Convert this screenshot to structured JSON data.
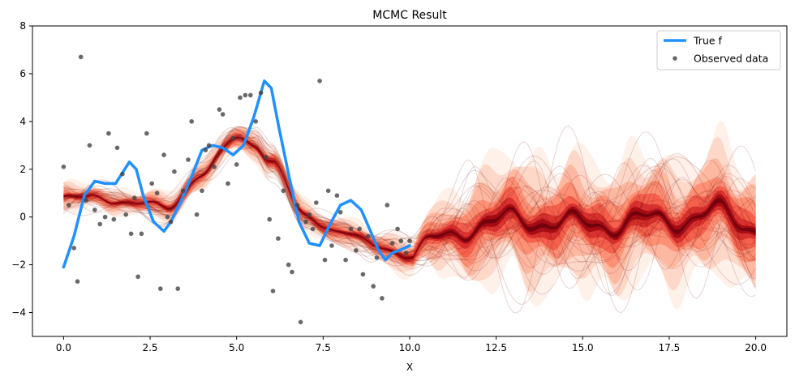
{
  "chart_data": {
    "type": "line",
    "title": "MCMC Result",
    "xlabel": "X",
    "ylabel": "",
    "xlim": [
      -0.9,
      20.9
    ],
    "ylim": [
      -5,
      8
    ],
    "xticks": [
      0.0,
      2.5,
      5.0,
      7.5,
      10.0,
      12.5,
      15.0,
      17.5,
      20.0
    ],
    "xtick_labels": [
      "0.0",
      "2.5",
      "5.0",
      "7.5",
      "10.0",
      "12.5",
      "15.0",
      "17.5",
      "20.0"
    ],
    "yticks": [
      -4,
      -2,
      0,
      2,
      4,
      6,
      8
    ],
    "ytick_labels": [
      "−4",
      "−2",
      "0",
      "2",
      "4",
      "6",
      "8"
    ],
    "grid": false,
    "legend_position": "top-right",
    "series": [
      {
        "name": "True f",
        "kind": "line",
        "color": "#1e90ff",
        "x": [
          0.0,
          0.3,
          0.6,
          0.9,
          1.2,
          1.5,
          1.9,
          2.1,
          2.3,
          2.6,
          2.9,
          3.1,
          3.4,
          3.7,
          4.0,
          4.3,
          4.6,
          4.9,
          5.2,
          5.5,
          5.8,
          6.0,
          6.2,
          6.5,
          6.8,
          7.1,
          7.4,
          7.7,
          8.0,
          8.3,
          8.6,
          8.9,
          9.1,
          9.3,
          9.5,
          9.7,
          10.0
        ],
        "y": [
          -2.1,
          -0.8,
          0.9,
          1.5,
          1.4,
          1.4,
          2.3,
          2.0,
          0.9,
          -0.2,
          -0.6,
          -0.2,
          0.7,
          1.7,
          2.8,
          3.0,
          2.9,
          2.6,
          3.0,
          4.2,
          5.7,
          5.4,
          3.9,
          1.8,
          -0.2,
          -1.1,
          -1.2,
          -0.3,
          0.5,
          0.7,
          0.3,
          -0.7,
          -1.4,
          -1.8,
          -1.5,
          -1.4,
          -1.2
        ]
      },
      {
        "name": "Observed data",
        "kind": "scatter",
        "color": "#444444",
        "x": [
          0.0,
          0.15,
          0.3,
          0.4,
          0.5,
          0.65,
          0.75,
          0.9,
          1.05,
          1.2,
          1.3,
          1.45,
          1.55,
          1.7,
          1.8,
          1.95,
          2.05,
          2.15,
          2.25,
          2.4,
          2.55,
          2.7,
          2.8,
          2.9,
          3.0,
          3.1,
          3.2,
          3.3,
          3.45,
          3.6,
          3.7,
          3.85,
          4.0,
          4.1,
          4.2,
          4.35,
          4.5,
          4.6,
          4.75,
          4.9,
          5.0,
          5.1,
          5.25,
          5.4,
          5.55,
          5.7,
          5.85,
          5.95,
          6.05,
          6.2,
          6.35,
          6.5,
          6.6,
          6.75,
          6.85,
          7.0,
          7.1,
          7.2,
          7.3,
          7.4,
          7.55,
          7.65,
          7.75,
          7.9,
          8.0,
          8.15,
          8.3,
          8.45,
          8.55,
          8.65,
          8.8,
          8.95,
          9.05,
          9.2,
          9.35,
          9.5,
          9.65,
          9.75,
          9.9,
          10.0
        ],
        "y": [
          2.1,
          0.5,
          -1.3,
          -2.7,
          6.7,
          0.7,
          3.0,
          0.3,
          -0.3,
          0.0,
          3.5,
          -0.1,
          2.9,
          1.8,
          0.1,
          -0.7,
          0.8,
          -2.5,
          -0.7,
          3.5,
          1.4,
          1.0,
          -3.0,
          2.6,
          0.0,
          -0.2,
          1.9,
          -3.0,
          1.1,
          2.4,
          4.0,
          0.1,
          1.1,
          2.8,
          3.0,
          2.1,
          4.5,
          4.3,
          1.4,
          3.3,
          2.2,
          5.0,
          5.1,
          5.1,
          4.0,
          5.2,
          2.5,
          -0.1,
          -3.1,
          -0.9,
          1.1,
          -2.0,
          -2.3,
          0.5,
          -4.4,
          -0.2,
          0.1,
          -0.5,
          0.6,
          5.7,
          -1.8,
          1.1,
          -1.2,
          0.9,
          0.2,
          -1.8,
          -0.5,
          -1.4,
          -0.5,
          -2.4,
          -0.8,
          -2.9,
          -1.7,
          -3.4,
          0.5,
          -1.1,
          -0.5,
          -1.0,
          -1.5,
          -1.0
        ]
      }
    ],
    "posterior": {
      "color_scheme": "Reds",
      "mean_x": [
        0,
        1,
        2,
        3,
        4,
        5,
        5.5,
        6,
        7,
        8,
        9,
        10,
        11,
        12,
        13,
        14,
        15,
        16,
        17,
        18,
        19,
        20
      ],
      "mean_y": [
        0.8,
        0.8,
        0.6,
        0.4,
        1.8,
        3.3,
        3.1,
        2.3,
        0.0,
        -0.6,
        -1.2,
        -1.6,
        -0.8,
        -0.4,
        0.0,
        -0.3,
        -0.2,
        -0.4,
        0.0,
        -0.2,
        0.3,
        -0.5
      ],
      "spread": [
        0.6,
        0.5,
        0.5,
        0.6,
        0.6,
        0.6,
        0.6,
        0.7,
        0.6,
        0.6,
        0.6,
        0.8,
        1.5,
        2.4,
        2.6,
        2.7,
        2.6,
        2.7,
        2.6,
        2.6,
        2.7,
        2.6
      ]
    }
  }
}
